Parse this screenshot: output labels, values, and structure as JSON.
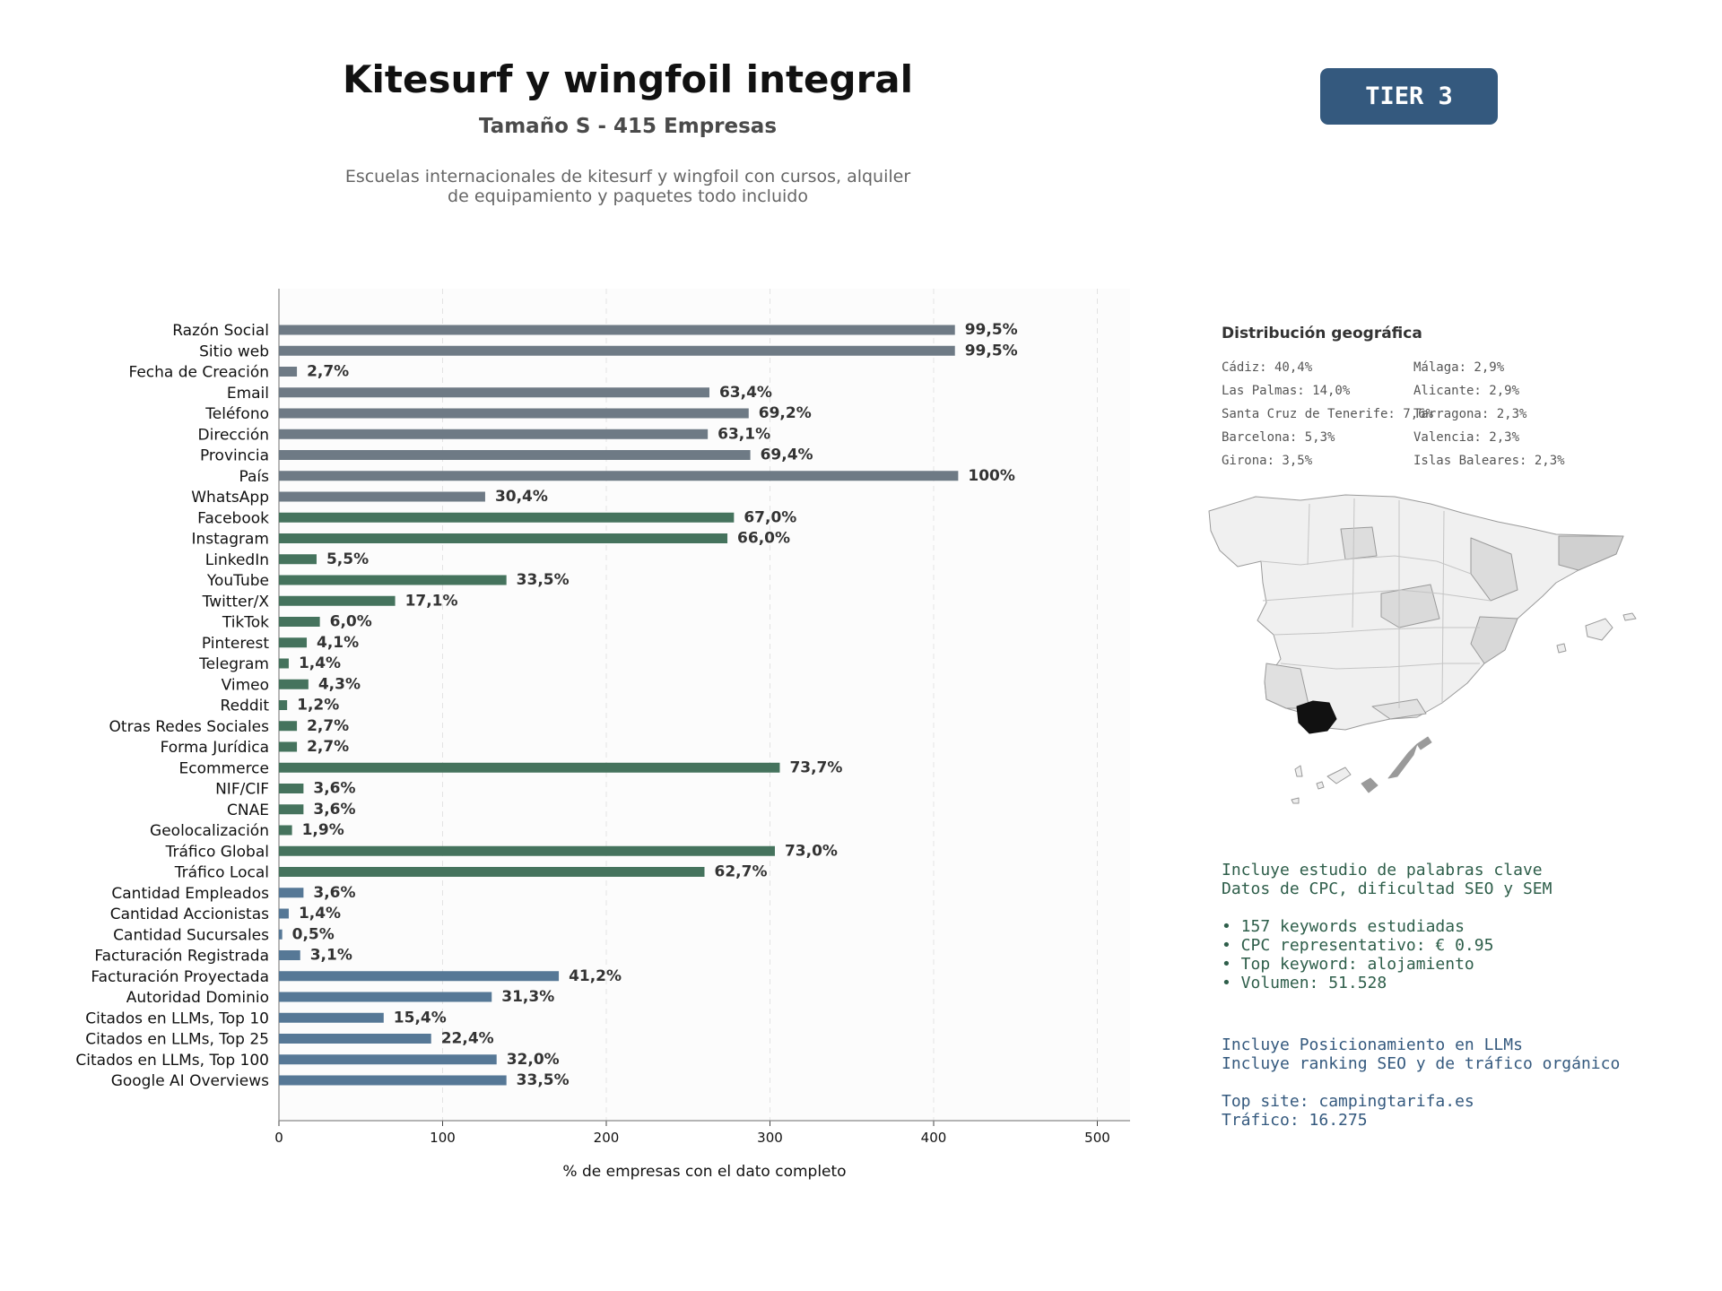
{
  "header": {
    "title": "Kitesurf y wingfoil integral",
    "subtitle": "Tamaño S - 415 Empresas",
    "description_line1": "Escuelas internacionales de kitesurf y wingfoil con cursos, alquiler",
    "description_line2": "de equipamiento y paquetes todo incluido",
    "tier_label": "TIER 3"
  },
  "colors": {
    "gray_bar": "#6e7a85",
    "green_bar": "#45735d",
    "blue_bar": "#567896",
    "tier_bg": "#34597e"
  },
  "chart_data": {
    "type": "bar",
    "orientation": "horizontal",
    "xlabel": "% de empresas con el dato completo",
    "xlim": [
      0,
      520
    ],
    "xticks": [
      0,
      100,
      200,
      300,
      400,
      500
    ],
    "grid": "vertical dashed",
    "categories": [
      "Razón Social",
      "Sitio web",
      "Fecha de Creación",
      "Email",
      "Teléfono",
      "Dirección",
      "Provincia",
      "País",
      "WhatsApp",
      "Facebook",
      "Instagram",
      "LinkedIn",
      "YouTube",
      "Twitter/X",
      "TikTok",
      "Pinterest",
      "Telegram",
      "Vimeo",
      "Reddit",
      "Otras Redes Sociales",
      "Forma Jurídica",
      "Ecommerce",
      "NIF/CIF",
      "CNAE",
      "Geolocalización",
      "Tráfico Global",
      "Tráfico Local",
      "Cantidad Empleados",
      "Cantidad Accionistas",
      "Cantidad Sucursales",
      "Facturación Registrada",
      "Facturación Proyectada",
      "Autoridad Dominio",
      "Citados en LLMs, Top 10",
      "Citados en LLMs, Top 25",
      "Citados en LLMs, Top 100",
      "Google AI Overviews"
    ],
    "values": [
      413,
      413,
      11,
      263,
      287,
      262,
      288,
      415,
      126,
      278,
      274,
      23,
      139,
      71,
      25,
      17,
      6,
      18,
      5,
      11,
      11,
      306,
      15,
      15,
      8,
      303,
      260,
      15,
      6,
      2,
      13,
      171,
      130,
      64,
      93,
      133,
      139
    ],
    "labels": [
      "99,5%",
      "99,5%",
      "2,7%",
      "63,4%",
      "69,2%",
      "63,1%",
      "69,4%",
      "100%",
      "30,4%",
      "67,0%",
      "66,0%",
      "5,5%",
      "33,5%",
      "17,1%",
      "6,0%",
      "4,1%",
      "1,4%",
      "4,3%",
      "1,2%",
      "2,7%",
      "2,7%",
      "73,7%",
      "3,6%",
      "3,6%",
      "1,9%",
      "73,0%",
      "62,7%",
      "3,6%",
      "1,4%",
      "0,5%",
      "3,1%",
      "41,2%",
      "31,3%",
      "15,4%",
      "22,4%",
      "32,0%",
      "33,5%"
    ],
    "groups": [
      "gray",
      "gray",
      "gray",
      "gray",
      "gray",
      "gray",
      "gray",
      "gray",
      "gray",
      "green",
      "green",
      "green",
      "green",
      "green",
      "green",
      "green",
      "green",
      "green",
      "green",
      "green",
      "green",
      "green",
      "green",
      "green",
      "green",
      "green",
      "green",
      "blue",
      "blue",
      "blue",
      "blue",
      "blue",
      "blue",
      "blue",
      "blue",
      "blue",
      "blue"
    ]
  },
  "geo": {
    "title": "Distribución geográfica",
    "left": [
      "Cádiz: 40,4%",
      "Las Palmas: 14,0%",
      "Santa Cruz de Tenerife: 7,6%",
      "Barcelona: 5,3%",
      "Girona: 3,5%"
    ],
    "right": [
      "Málaga: 2,9%",
      "Alicante: 2,9%",
      "Tarragona: 2,3%",
      "Valencia: 2,3%",
      "Islas Baleares: 2,3%"
    ]
  },
  "keywords": {
    "line1": "Incluye estudio de palabras clave",
    "line2": "Datos de CPC, dificultad SEO y SEM",
    "b1": "• 157 keywords estudiadas",
    "b2": "• CPC representativo: € 0.95",
    "b3": "• Top keyword: alojamiento",
    "b4": "• Volumen: 51.528"
  },
  "llm": {
    "line1": "Incluye Posicionamiento en LLMs",
    "line2": "Incluye ranking SEO y de tráfico orgánico",
    "site": "Top site: campingtarifa.es",
    "traffic": "Tráfico: 16.275"
  }
}
